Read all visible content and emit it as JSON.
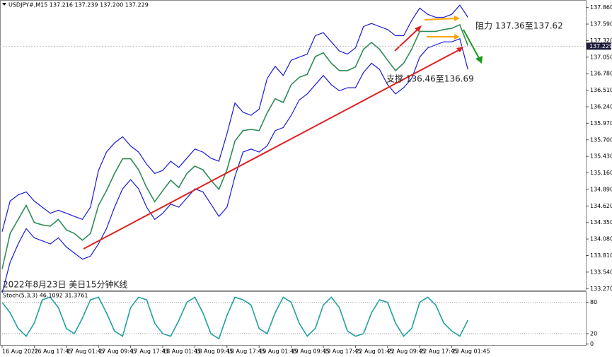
{
  "chart_data": [
    {
      "type": "line",
      "title": "USDJPY#,M15  137.216 137.239 137.200 137.229",
      "annotations": [
        "阻力 137.36至137.62",
        "支撑 136.46至136.69",
        "2022年8月23日 美日15分钟K线"
      ],
      "categories": [
        "16 Aug 2022",
        null,
        null,
        null,
        "16 Aug 17:45",
        null,
        null,
        null,
        "17 Aug 01:45",
        null,
        null,
        null,
        "17 Aug 09:45",
        null,
        null,
        null,
        "17 Aug 17:45",
        null,
        null,
        null,
        "18 Aug 01:45",
        null,
        null,
        null,
        "18 Aug 09:45",
        null,
        null,
        null,
        "18 Aug 17:45",
        null,
        null,
        null,
        "19 Aug 01:45",
        null,
        null,
        null,
        "19 Aug 09:45",
        null,
        null,
        null,
        "19 Aug 17:45",
        null,
        null,
        null,
        "22 Aug 01:45",
        null,
        null,
        null,
        "22 Aug 09:45",
        null,
        null,
        null,
        "22 Aug 17:45",
        null,
        null,
        null,
        "23 Aug 01:45",
        null,
        null
      ],
      "series": [
        {
          "color": "#2e8b57",
          "values": [
            133.59,
            134.17,
            134.4,
            134.63,
            134.35,
            134.31,
            134.29,
            134.4,
            134.23,
            134.17,
            134.06,
            134.17,
            134.63,
            134.87,
            135.15,
            135.39,
            135.39,
            135.21,
            134.92,
            134.69,
            134.87,
            135.04,
            134.92,
            135.15,
            135.27,
            135.21,
            135.04,
            134.89,
            135.21,
            135.68,
            135.85,
            135.87,
            135.85,
            136.14,
            136.37,
            136.31,
            136.6,
            136.72,
            136.77,
            137.06,
            137.12,
            136.95,
            136.83,
            136.83,
            136.89,
            137.18,
            137.29,
            137.18,
            137.0,
            136.83,
            136.95,
            137.18,
            137.47,
            137.47,
            137.47,
            137.5,
            137.52,
            137.58,
            137.24
          ]
        },
        {
          "color": "#1a1ad6",
          "values": [
            134.2,
            134.7,
            134.8,
            134.85,
            134.7,
            134.6,
            134.5,
            134.55,
            134.5,
            134.45,
            134.4,
            134.6,
            135.2,
            135.5,
            135.65,
            135.75,
            135.6,
            135.5,
            135.3,
            135.15,
            135.2,
            135.35,
            135.25,
            135.4,
            135.55,
            135.5,
            135.4,
            135.35,
            135.8,
            136.3,
            136.15,
            136.1,
            136.2,
            136.7,
            136.9,
            136.75,
            137.0,
            137.05,
            137.1,
            137.4,
            137.45,
            137.3,
            137.15,
            137.1,
            137.2,
            137.55,
            137.6,
            137.55,
            137.5,
            137.4,
            137.4,
            137.65,
            137.85,
            137.75,
            137.7,
            137.7,
            137.75,
            137.9,
            137.7
          ]
        },
        {
          "color": "#1a1ad6",
          "values": [
            133.2,
            133.7,
            134.0,
            134.25,
            134.1,
            134.05,
            134.0,
            134.1,
            133.95,
            133.85,
            133.75,
            133.8,
            134.0,
            134.25,
            134.6,
            134.9,
            135.05,
            134.9,
            134.6,
            134.4,
            134.5,
            134.65,
            134.6,
            134.75,
            134.9,
            134.85,
            134.65,
            134.45,
            134.6,
            135.1,
            135.5,
            135.55,
            135.5,
            135.6,
            135.85,
            135.9,
            136.1,
            136.35,
            136.45,
            136.6,
            136.75,
            136.6,
            136.5,
            136.55,
            136.55,
            136.8,
            136.95,
            136.85,
            136.6,
            136.45,
            136.55,
            136.7,
            137.05,
            137.2,
            137.25,
            137.3,
            137.3,
            137.35,
            136.85
          ]
        }
      ],
      "last_price": 137.229,
      "ylim": [
        133.25,
        137.96
      ],
      "yticks": [
        {
          "value": 133.27,
          "label": "133.270"
        },
        {
          "value": 133.54,
          "label": "133.540"
        },
        {
          "value": 133.81,
          "label": "133.810"
        },
        {
          "value": 134.08,
          "label": "134.080"
        },
        {
          "value": 134.35,
          "label": "134.350"
        },
        {
          "value": 134.62,
          "label": "134.620"
        },
        {
          "value": 134.89,
          "label": "134.890"
        },
        {
          "value": 135.16,
          "label": "135.160"
        },
        {
          "value": 135.43,
          "label": "135.430"
        },
        {
          "value": 135.7,
          "label": "135.700"
        },
        {
          "value": 135.97,
          "label": "135.970"
        },
        {
          "value": 136.24,
          "label": "136.240"
        },
        {
          "value": 136.51,
          "label": "136.510"
        },
        {
          "value": 136.78,
          "label": "136.780"
        },
        {
          "value": 137.05,
          "label": "137.050"
        },
        {
          "value": 137.32,
          "label": "137.320"
        },
        {
          "value": 137.59,
          "label": "137.590"
        },
        {
          "value": 137.86,
          "label": "137.860"
        }
      ]
    },
    {
      "type": "line",
      "title": "Stoch(5,3,3) 46.1092 31.3761",
      "series": [
        {
          "color": "#20a0a0",
          "values": [
            80,
            60,
            30,
            15,
            40,
            85,
            90,
            70,
            30,
            20,
            50,
            85,
            90,
            60,
            25,
            15,
            70,
            90,
            85,
            40,
            20,
            15,
            45,
            80,
            90,
            60,
            20,
            10,
            55,
            90,
            85,
            75,
            30,
            20,
            60,
            90,
            80,
            40,
            15,
            30,
            75,
            90,
            70,
            25,
            15,
            20,
            60,
            85,
            80,
            40,
            15,
            30,
            80,
            90,
            75,
            40,
            25,
            15,
            46
          ]
        }
      ],
      "ylim": [
        0,
        100
      ],
      "yticks": [
        0,
        20,
        80
      ]
    }
  ]
}
